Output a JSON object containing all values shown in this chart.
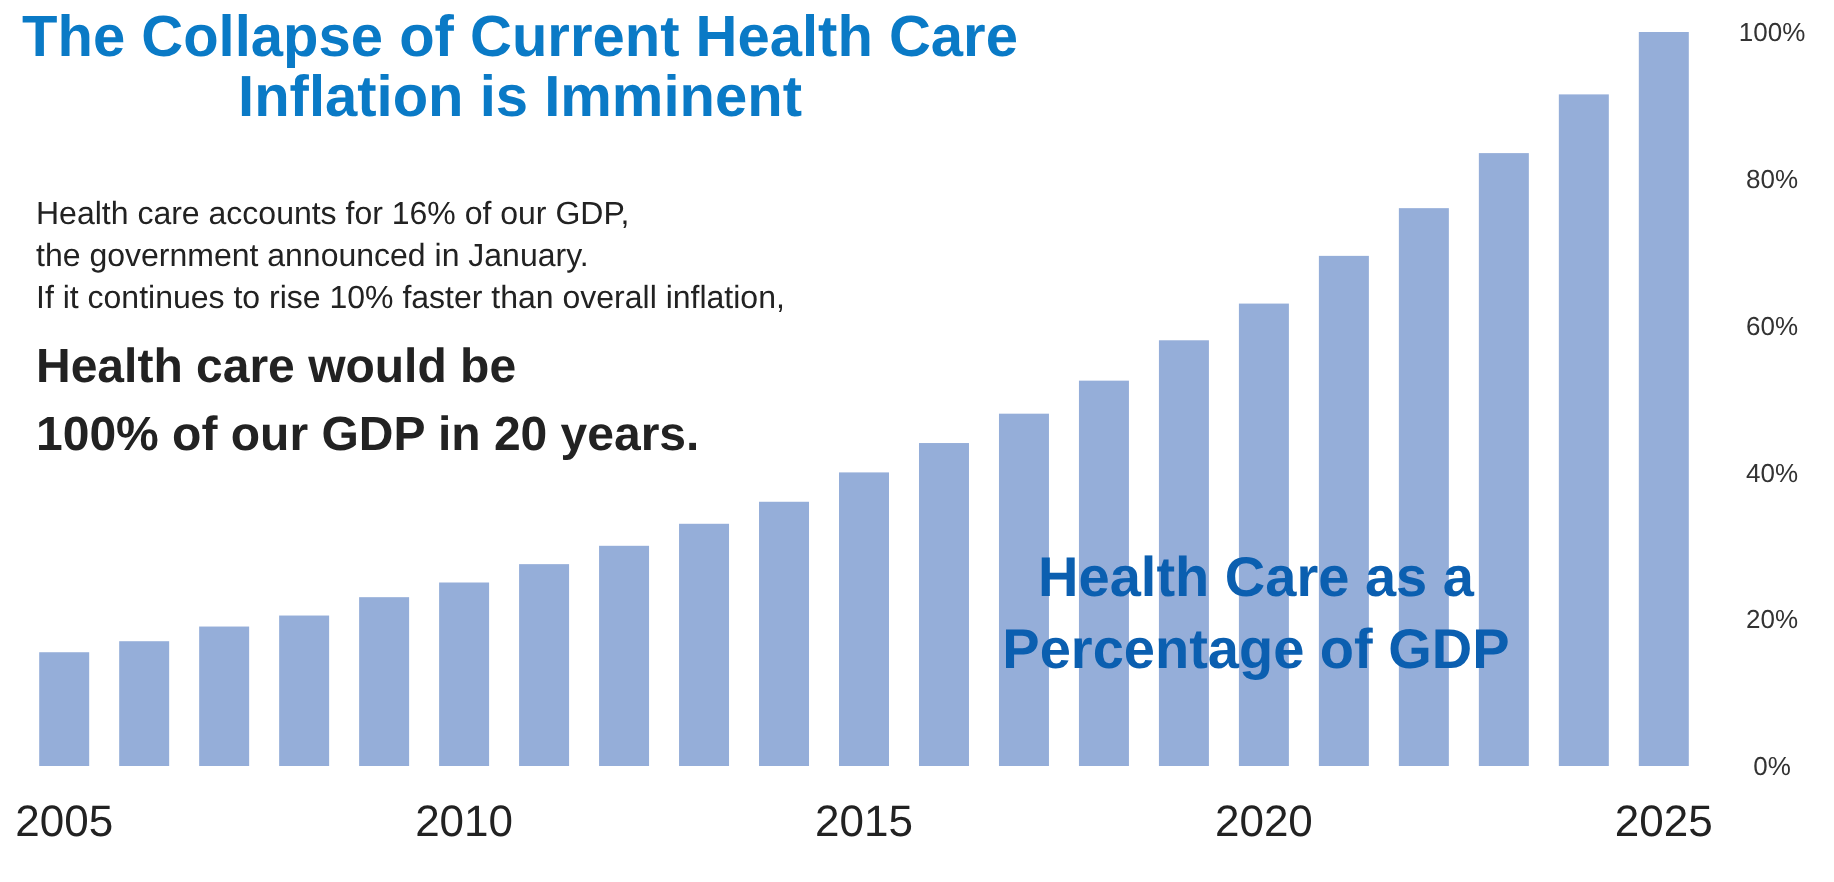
{
  "chart_data": {
    "type": "bar",
    "title": "The Collapse of Current Health Care\nInflation is Imminent",
    "categories": [
      "2005",
      null,
      null,
      null,
      null,
      "2010",
      null,
      null,
      null,
      null,
      "2015",
      null,
      null,
      null,
      null,
      "2020",
      null,
      null,
      null,
      null,
      "2025"
    ],
    "values": [
      15.5,
      17,
      19,
      20.5,
      23,
      25,
      27.5,
      30,
      33,
      36,
      40,
      44,
      48,
      52.5,
      58,
      63,
      69.5,
      76,
      83.5,
      91.5,
      100
    ],
    "color": "#95aed9",
    "ylim": [
      0,
      100
    ],
    "yticks": [
      {
        "value": 0,
        "label": "0%"
      },
      {
        "value": 20,
        "label": "20%"
      },
      {
        "value": 40,
        "label": "40%"
      },
      {
        "value": 60,
        "label": "60%"
      },
      {
        "value": 80,
        "label": "80%"
      },
      {
        "value": 100,
        "label": "100%"
      }
    ],
    "annotations": [
      "Health care accounts for 16% of our GDP,",
      "the government announced in January.",
      "If it continues to rise 10% faster than overall inflation,",
      "Health care would be",
      "100% of our GDP in 20 years.",
      "Health Care as a\nPercentage of GDP"
    ],
    "grid": false
  }
}
